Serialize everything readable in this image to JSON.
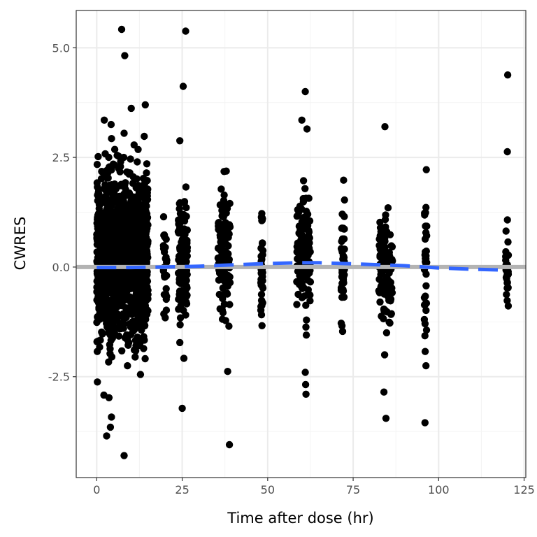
{
  "chart_data": {
    "type": "scatter",
    "title": "",
    "xlabel": "Time after dose (hr)",
    "ylabel": "CWRES",
    "xlim": [
      -6,
      125.5
    ],
    "ylim": [
      -4.8,
      5.85
    ],
    "x_ticks": [
      0,
      25,
      50,
      75,
      100,
      125
    ],
    "x_tick_labels": [
      "0",
      "25",
      "50",
      "75",
      "100",
      "125"
    ],
    "y_ticks": [
      -2.5,
      0.0,
      2.5,
      5.0
    ],
    "y_tick_labels": [
      "-2.5",
      "0.0",
      "2.5",
      "5.0"
    ],
    "grid": true,
    "theme": "black-and-white panel",
    "colors": {
      "points": "#000000",
      "reference_line": "#b3b3b3",
      "smooth_line": "#3366ff",
      "grid_major": "#ebebeb",
      "grid_minor": "#f4f4f4",
      "panel_border": "#333333"
    },
    "reference_line": {
      "y": 0
    },
    "smooth": {
      "style": "dashed",
      "x": [
        0,
        10,
        20,
        30,
        40,
        50,
        60,
        65,
        72,
        80,
        90,
        100,
        110,
        120
      ],
      "y": [
        -0.01,
        -0.01,
        0.0,
        0.02,
        0.05,
        0.08,
        0.1,
        0.1,
        0.08,
        0.06,
        0.03,
        -0.02,
        -0.05,
        -0.07
      ]
    },
    "scatter_groups": [
      {
        "x_min": 0,
        "x_max": 15,
        "y_min": -2.5,
        "y_max": 3.0,
        "n": 1400
      },
      {
        "x_min": 19.5,
        "x_max": 20.5,
        "y_min": -1.8,
        "y_max": 1.8,
        "n": 30
      },
      {
        "x_min": 23.8,
        "x_max": 26.5,
        "y_min": -2.0,
        "y_max": 2.2,
        "n": 140
      },
      {
        "x_min": 35.5,
        "x_max": 39.0,
        "y_min": -1.7,
        "y_max": 2.3,
        "n": 120
      },
      {
        "x_min": 48.0,
        "x_max": 48.6,
        "y_min": -2.0,
        "y_max": 2.1,
        "n": 40
      },
      {
        "x_min": 58.5,
        "x_max": 62.5,
        "y_min": -1.7,
        "y_max": 2.5,
        "n": 130
      },
      {
        "x_min": 71.5,
        "x_max": 72.5,
        "y_min": -2.0,
        "y_max": 2.0,
        "n": 50
      },
      {
        "x_min": 82.5,
        "x_max": 86.5,
        "y_min": -2.0,
        "y_max": 2.0,
        "n": 110
      },
      {
        "x_min": 95.8,
        "x_max": 96.6,
        "y_min": -2.2,
        "y_max": 2.2,
        "n": 35
      },
      {
        "x_min": 119.6,
        "x_max": 120.4,
        "y_min": -1.6,
        "y_max": 1.2,
        "n": 25
      }
    ],
    "outliers": [
      [
        7.3,
        5.42
      ],
      [
        8.2,
        4.82
      ],
      [
        10.1,
        3.62
      ],
      [
        14.2,
        3.7
      ],
      [
        2.2,
        3.35
      ],
      [
        4.2,
        3.25
      ],
      [
        8.0,
        3.05
      ],
      [
        13.9,
        2.98
      ],
      [
        12.1,
        2.68
      ],
      [
        26.0,
        5.38
      ],
      [
        25.3,
        4.12
      ],
      [
        24.3,
        2.88
      ],
      [
        61.0,
        4.0
      ],
      [
        60.0,
        3.35
      ],
      [
        61.5,
        3.15
      ],
      [
        84.3,
        3.2
      ],
      [
        120.2,
        4.38
      ],
      [
        120.1,
        2.63
      ],
      [
        96.4,
        2.22
      ],
      [
        72.2,
        1.98
      ],
      [
        8.0,
        -4.3
      ],
      [
        2.9,
        -3.85
      ],
      [
        4.0,
        -3.65
      ],
      [
        4.3,
        -3.42
      ],
      [
        3.6,
        -2.98
      ],
      [
        2.1,
        -2.92
      ],
      [
        0.2,
        -2.62
      ],
      [
        12.8,
        -2.45
      ],
      [
        9.0,
        -2.25
      ],
      [
        25.0,
        -3.22
      ],
      [
        38.8,
        -4.05
      ],
      [
        38.3,
        -2.38
      ],
      [
        61.0,
        -2.4
      ],
      [
        61.1,
        -2.68
      ],
      [
        61.2,
        -2.9
      ],
      [
        84.6,
        -3.45
      ],
      [
        84.0,
        -2.85
      ],
      [
        96.0,
        -3.55
      ],
      [
        96.3,
        -2.25
      ],
      [
        25.5,
        -2.08
      ],
      [
        84.2,
        -2.0
      ],
      [
        61.3,
        -1.55
      ]
    ]
  }
}
